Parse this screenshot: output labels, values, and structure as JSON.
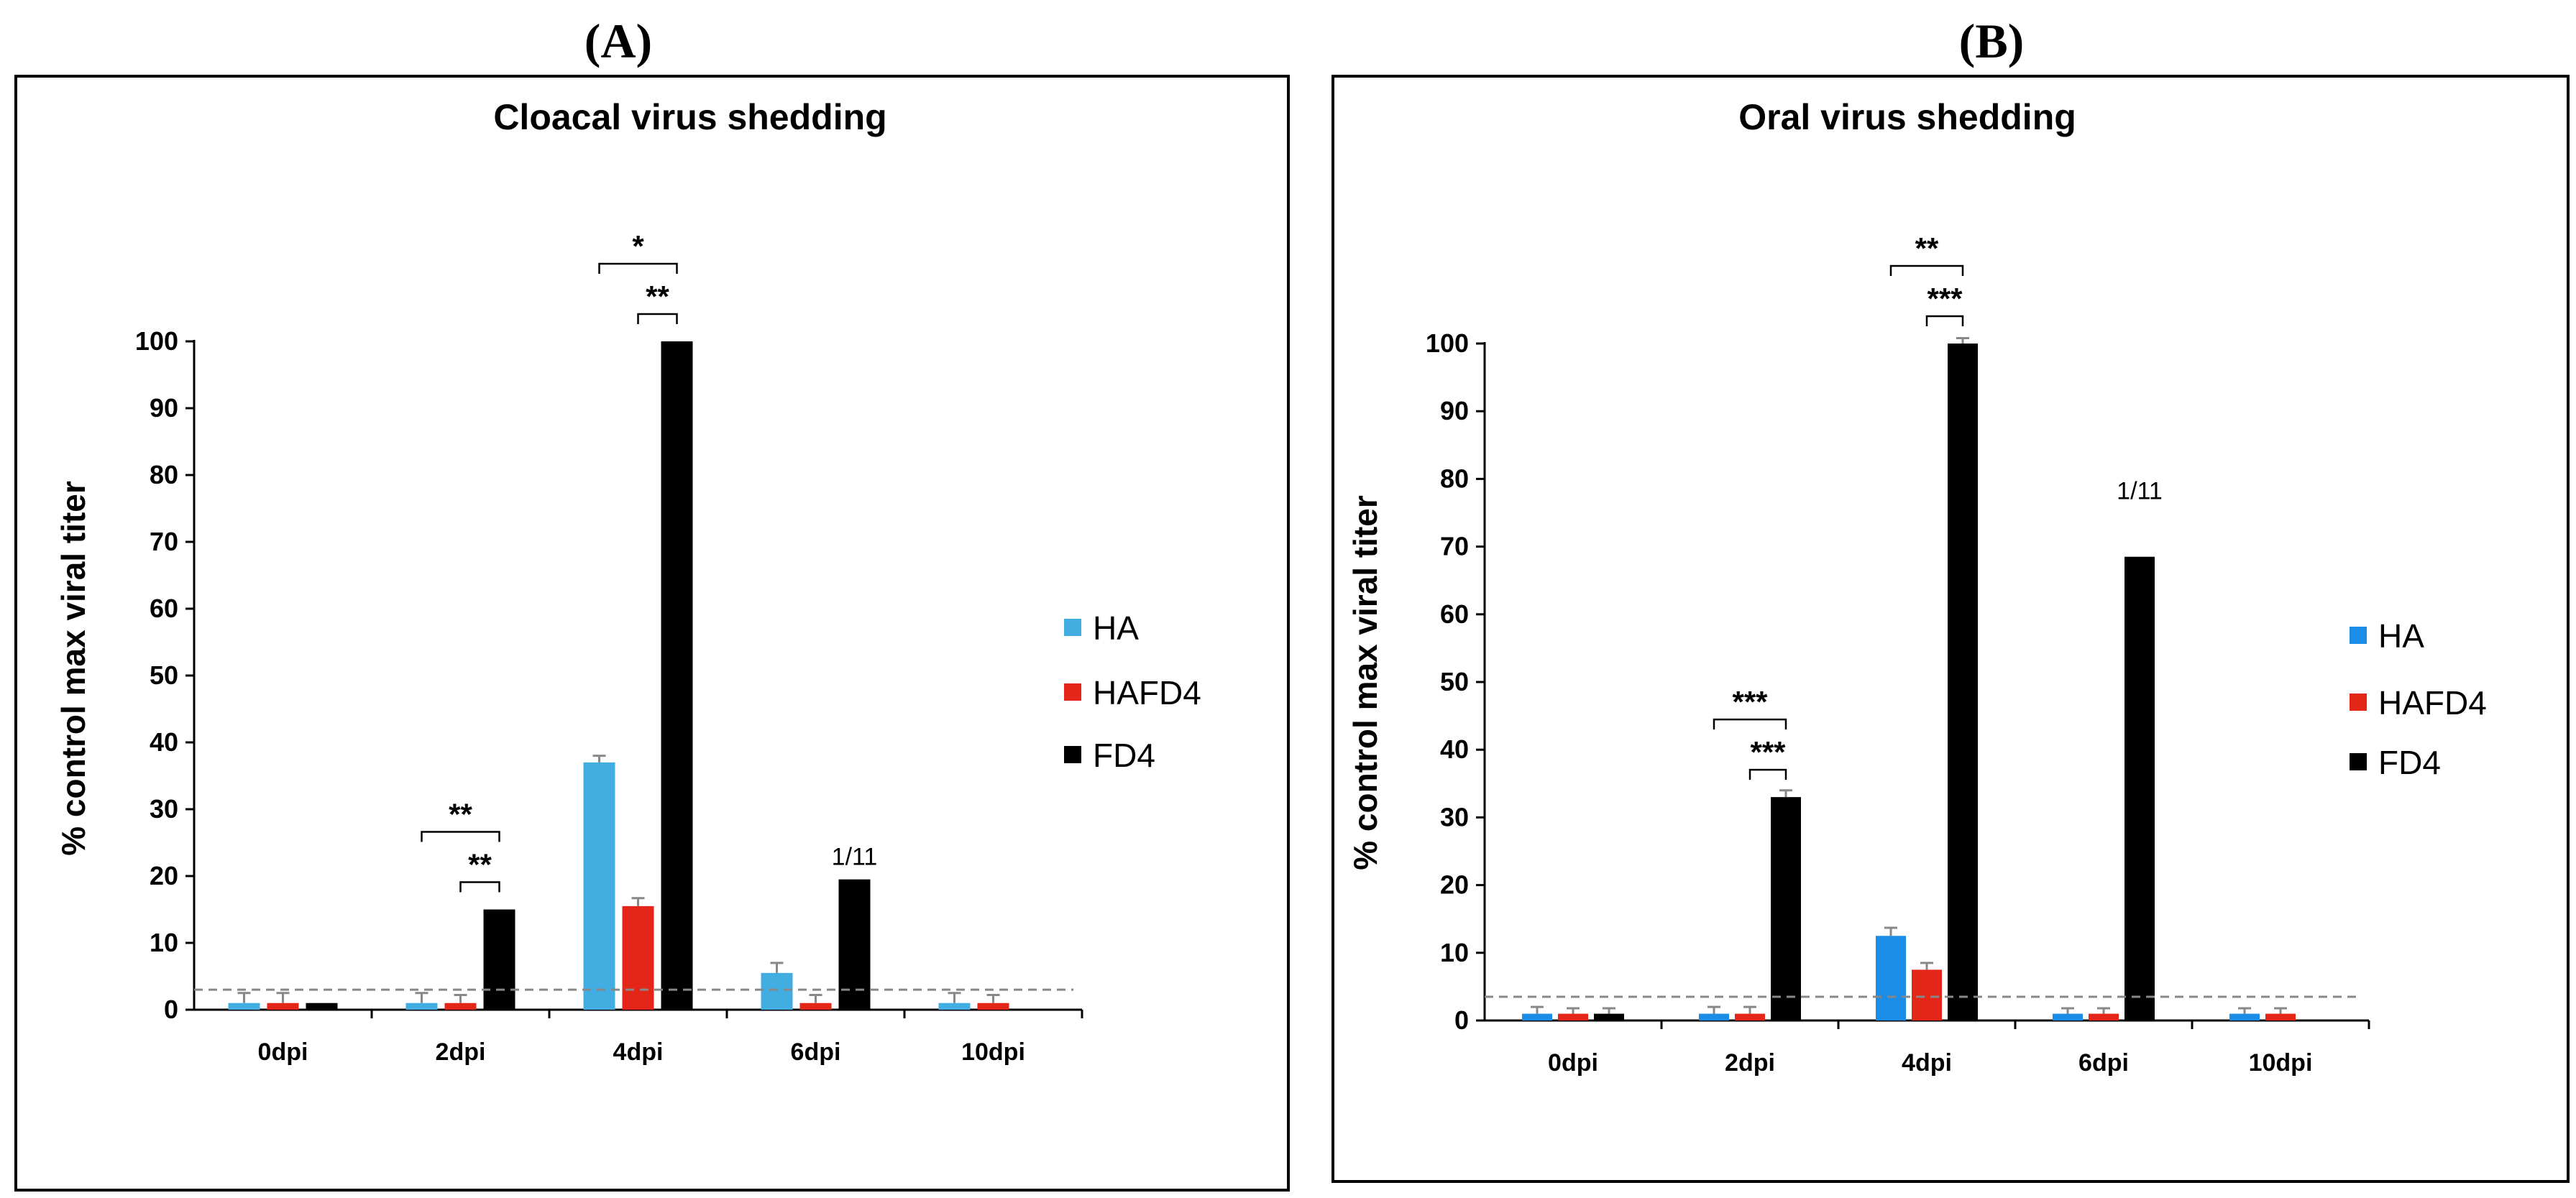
{
  "colors": {
    "HA_A": "#41ade0",
    "HA_B": "#1b8de6",
    "HAFD4": "#e42618",
    "FD4": "#000000",
    "errorbar": "#888888",
    "detection": "#888888"
  },
  "chart_data": [
    {
      "type": "bar",
      "panel": "(A)",
      "title": "Cloacal virus shedding",
      "xlabel": "",
      "ylabel": "% control max viral titer",
      "ylim": [
        0,
        100
      ],
      "yticks": [
        0,
        10,
        20,
        30,
        40,
        50,
        60,
        70,
        80,
        90,
        100
      ],
      "categories": [
        "0dpi",
        "2dpi",
        "4dpi",
        "6dpi",
        "10dpi"
      ],
      "series": [
        {
          "name": "HA",
          "values": [
            1,
            1,
            37,
            5.5,
            1
          ],
          "errors": [
            1.5,
            1.5,
            1,
            1.5,
            1.5
          ]
        },
        {
          "name": "HAFD4",
          "values": [
            1,
            1,
            15.5,
            1,
            1
          ],
          "errors": [
            1.5,
            1.2,
            1.2,
            1.2,
            1.2
          ]
        },
        {
          "name": "FD4",
          "values": [
            1,
            15,
            100,
            19.5,
            null
          ],
          "errors": [
            0,
            0,
            0,
            0,
            0
          ]
        }
      ],
      "detection_limit": 3,
      "legend": {
        "position": "right",
        "entries": [
          "HA",
          "HAFD4",
          "FD4"
        ]
      },
      "significance": [
        {
          "category": "2dpi",
          "from": "HA",
          "to": "FD4",
          "label": "**",
          "level": 1
        },
        {
          "category": "2dpi",
          "from": "HAFD4",
          "to": "FD4",
          "label": "**",
          "level": 0
        },
        {
          "category": "4dpi",
          "from": "HA",
          "to": "FD4",
          "label": "*",
          "level": 1
        },
        {
          "category": "4dpi",
          "from": "HAFD4",
          "to": "FD4",
          "label": "**",
          "level": 0
        }
      ],
      "annotations": [
        {
          "category": "6dpi",
          "series": "FD4",
          "text": "1/11"
        }
      ]
    },
    {
      "type": "bar",
      "panel": "(B)",
      "title": "Oral virus shedding",
      "xlabel": "",
      "ylabel": "% control max viral titer",
      "ylim": [
        0,
        100
      ],
      "yticks": [
        0,
        10,
        20,
        30,
        40,
        50,
        60,
        70,
        80,
        90,
        100
      ],
      "categories": [
        "0dpi",
        "2dpi",
        "4dpi",
        "6dpi",
        "10dpi"
      ],
      "series": [
        {
          "name": "HA",
          "values": [
            1,
            1,
            12.5,
            1,
            1
          ],
          "errors": [
            1,
            1,
            1.2,
            0.8,
            0.8
          ]
        },
        {
          "name": "HAFD4",
          "values": [
            1,
            1,
            7.5,
            1,
            1
          ],
          "errors": [
            0.8,
            1,
            1,
            0.8,
            0.8
          ]
        },
        {
          "name": "FD4",
          "values": [
            1,
            33,
            100,
            68.5,
            null
          ],
          "errors": [
            0.8,
            1,
            0.8,
            0,
            0
          ]
        }
      ],
      "detection_limit": 3.5,
      "legend": {
        "position": "right",
        "entries": [
          "HA",
          "HAFD4",
          "FD4"
        ]
      },
      "significance": [
        {
          "category": "2dpi",
          "from": "HA",
          "to": "FD4",
          "label": "***",
          "level": 1
        },
        {
          "category": "2dpi",
          "from": "HAFD4",
          "to": "FD4",
          "label": "***",
          "level": 0
        },
        {
          "category": "4dpi",
          "from": "HA",
          "to": "FD4",
          "label": "**",
          "level": 1
        },
        {
          "category": "4dpi",
          "from": "HAFD4",
          "to": "FD4",
          "label": "***",
          "level": 0
        }
      ],
      "annotations": [
        {
          "category": "6dpi",
          "series": "FD4",
          "text": "1/11"
        }
      ]
    }
  ]
}
